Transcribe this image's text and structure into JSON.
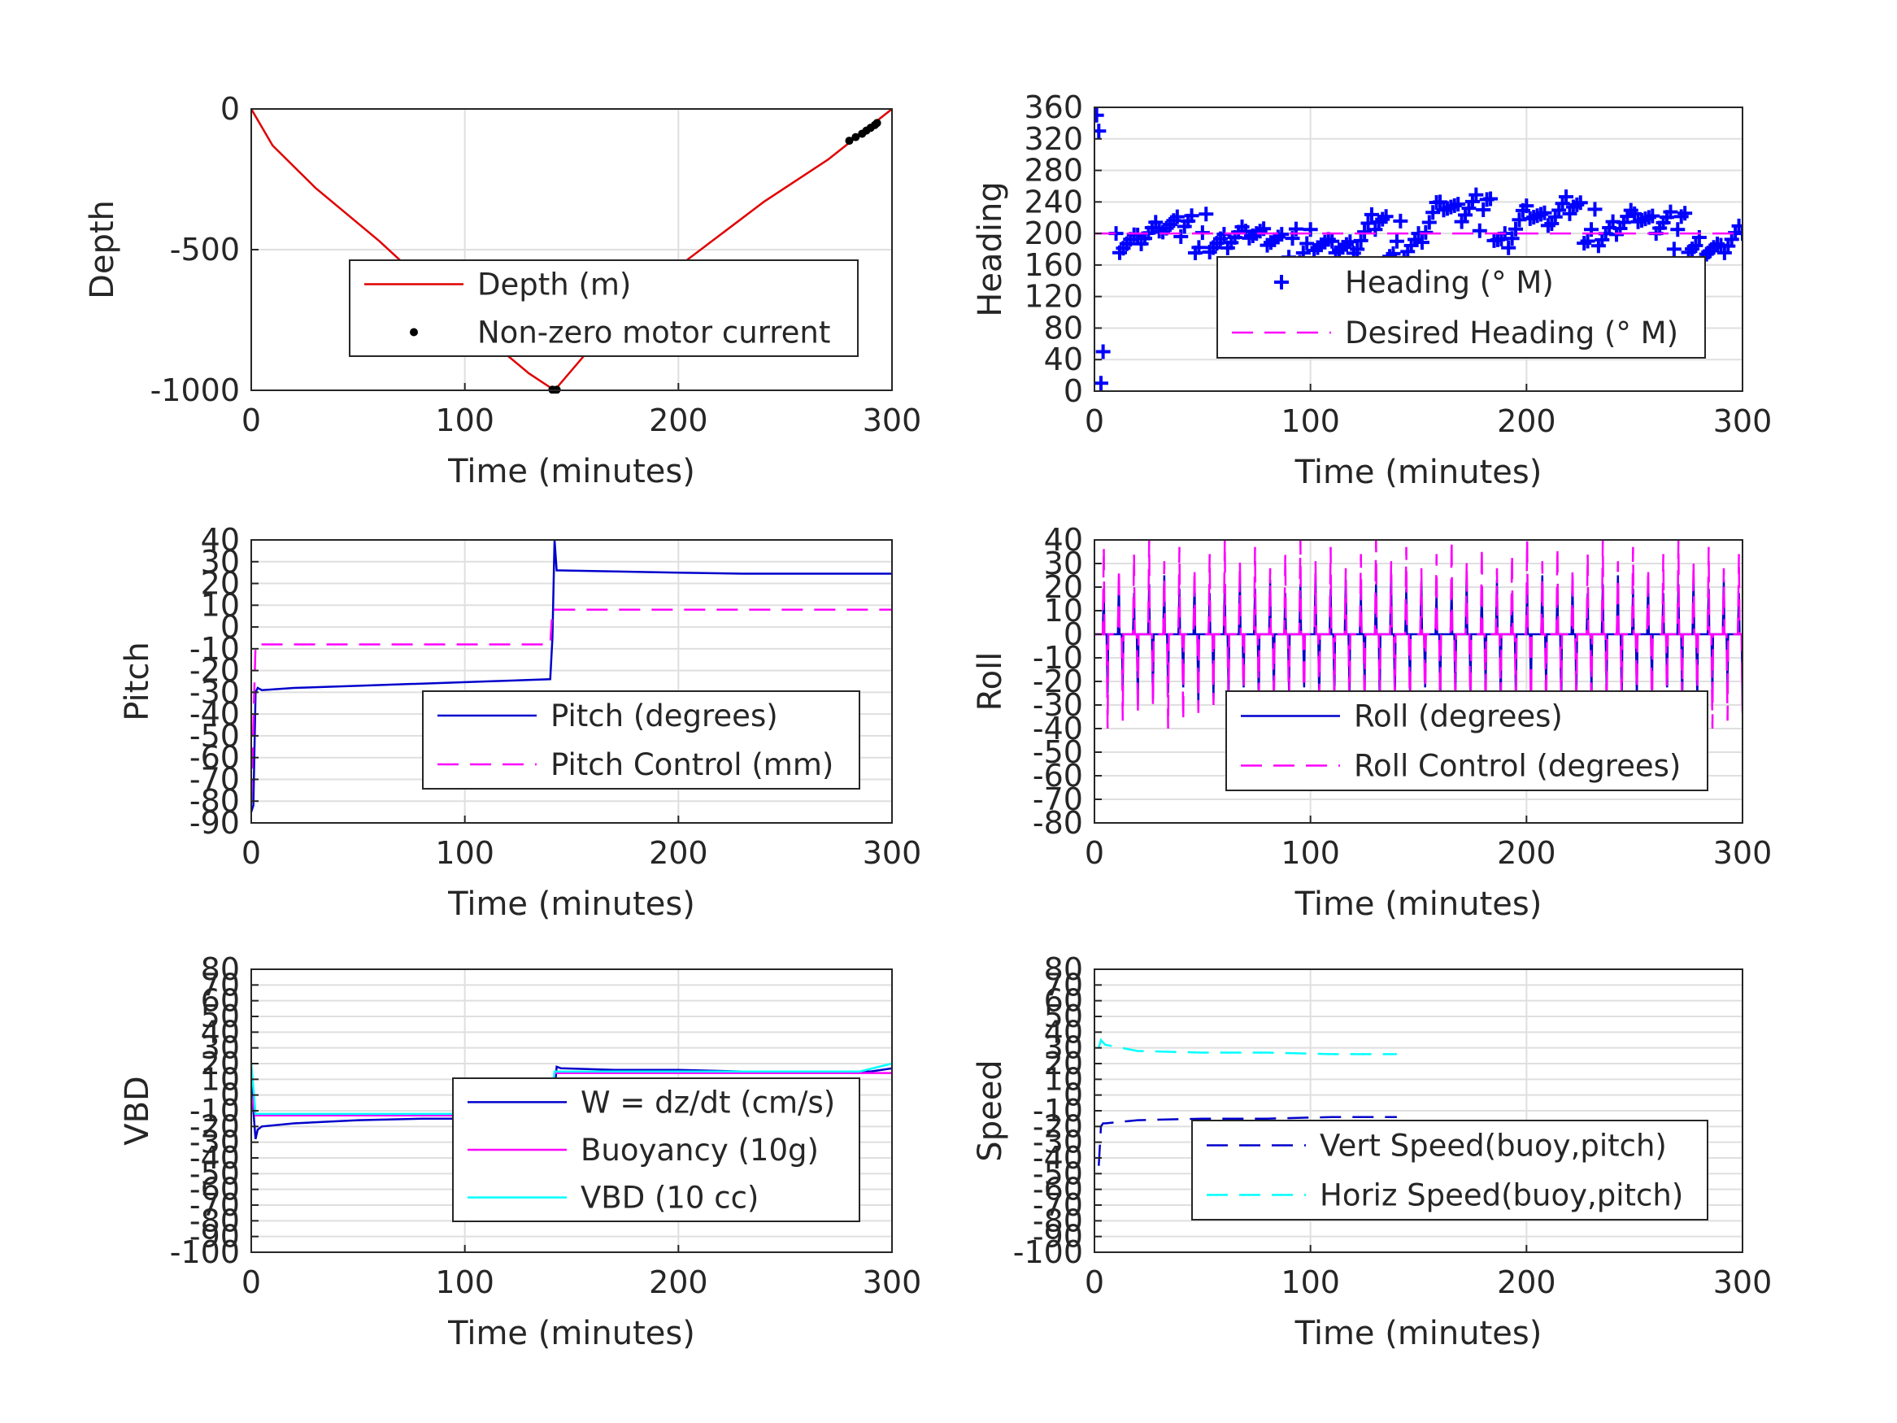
{
  "chart_data": [
    {
      "type": "line",
      "xlabel": "Time (minutes)",
      "ylabel": "Depth",
      "xlim": [
        0,
        300
      ],
      "ylim": [
        -1000,
        0
      ],
      "xticks": [
        0,
        100,
        200,
        300
      ],
      "yticks": [
        0,
        -500,
        -1000
      ],
      "grid": true,
      "legend_position": "bottom-right",
      "series": [
        {
          "name": "Depth (m)",
          "color": "#e00000",
          "style": "solid",
          "x": [
            0,
            10,
            30,
            60,
            100,
            130,
            142,
            160,
            200,
            240,
            270,
            300
          ],
          "y": [
            0,
            -130,
            -280,
            -470,
            -750,
            -940,
            -1000,
            -840,
            -560,
            -330,
            -180,
            0
          ]
        },
        {
          "name": "Non-zero motor current",
          "color": "#000000",
          "style": "markers",
          "x": [
            141,
            142,
            143,
            280,
            283,
            286,
            288,
            290,
            292,
            293
          ],
          "y": [
            -998,
            -1000,
            -998,
            -113,
            -100,
            -88,
            -77,
            -67,
            -57,
            -50
          ]
        }
      ]
    },
    {
      "type": "scatter",
      "xlabel": "Time (minutes)",
      "ylabel": "Heading",
      "xlim": [
        0,
        300
      ],
      "ylim": [
        0,
        360
      ],
      "xticks": [
        0,
        100,
        200,
        300
      ],
      "yticks": [
        0,
        40,
        80,
        120,
        160,
        200,
        240,
        280,
        320,
        360
      ],
      "grid": true,
      "legend_position": "bottom-right",
      "series": [
        {
          "name": "Heading (° M)",
          "color": "#0000ff",
          "style": "plus-markers",
          "x": [
            1,
            2,
            3,
            4,
            10,
            20,
            30,
            40,
            50,
            60,
            70,
            80,
            90,
            100,
            110,
            120,
            130,
            140,
            150,
            160,
            170,
            180,
            190,
            200,
            210,
            220,
            230,
            240,
            250,
            260,
            270,
            280,
            290,
            300
          ],
          "y": [
            350,
            330,
            10,
            50,
            200,
            198,
            203,
            196,
            201,
            199,
            203,
            185,
            170,
            205,
            190,
            175,
            205,
            190,
            200,
            240,
            215,
            230,
            200,
            235,
            210,
            225,
            205,
            215,
            225,
            200,
            205,
            195,
            185,
            200
          ]
        },
        {
          "name": "Desired Heading (° M)",
          "color": "#ff00ff",
          "style": "dashed",
          "x": [
            0,
            300
          ],
          "y": [
            200,
            200
          ]
        }
      ]
    },
    {
      "type": "line",
      "xlabel": "Time (minutes)",
      "ylabel": "Pitch",
      "xlim": [
        0,
        300
      ],
      "ylim": [
        -90,
        40
      ],
      "xticks": [
        0,
        100,
        200,
        300
      ],
      "yticks": [
        40,
        30,
        20,
        10,
        0,
        -10,
        -20,
        -30,
        -40,
        -50,
        -60,
        -70,
        -80,
        -90
      ],
      "grid": true,
      "legend_position": "bottom-right",
      "series": [
        {
          "name": "Pitch (degrees)",
          "color": "#0000cc",
          "style": "solid",
          "x": [
            0,
            1,
            2,
            3,
            5,
            20,
            50,
            80,
            110,
            140,
            141,
            142,
            143,
            145,
            170,
            200,
            230,
            260,
            300
          ],
          "y": [
            -85,
            -82,
            -30,
            -28,
            -29,
            -28,
            -27,
            -26,
            -25,
            -24,
            -5,
            40,
            26,
            26,
            25.5,
            25,
            24.5,
            24.5,
            24.5
          ]
        },
        {
          "name": "Pitch Control (mm)",
          "color": "#ff00ff",
          "style": "dashed",
          "x": [
            0,
            2,
            3,
            140,
            141,
            142,
            300
          ],
          "y": [
            -80,
            -8,
            -8,
            -8,
            8,
            8,
            8
          ]
        }
      ]
    },
    {
      "type": "line",
      "xlabel": "Time (minutes)",
      "ylabel": "Roll",
      "xlim": [
        0,
        300
      ],
      "ylim": [
        -80,
        40
      ],
      "xticks": [
        0,
        100,
        200,
        300
      ],
      "yticks": [
        40,
        30,
        20,
        10,
        0,
        -10,
        -20,
        -30,
        -40,
        -50,
        -60,
        -70,
        -80
      ],
      "grid": true,
      "legend_position": "bottom-right",
      "series": [
        {
          "name": "Roll (degrees)",
          "color": "#0000cc",
          "style": "solid",
          "oscillation_period_minutes": 7,
          "baseline": 0,
          "y_max": 25,
          "y_min": -30
        },
        {
          "name": "Roll Control (degrees)",
          "color": "#ff00ff",
          "style": "dashed",
          "oscillation_period_minutes": 7,
          "baseline": 0,
          "y_max": 40,
          "y_min": -40
        }
      ]
    },
    {
      "type": "line",
      "xlabel": "Time (minutes)",
      "ylabel": "VBD",
      "xlim": [
        0,
        300
      ],
      "ylim": [
        -100,
        80
      ],
      "xticks": [
        0,
        100,
        200,
        300
      ],
      "yticks": [
        80,
        70,
        60,
        50,
        40,
        30,
        20,
        10,
        0,
        -10,
        -20,
        -30,
        -40,
        -50,
        -60,
        -70,
        -80,
        -90,
        -100
      ],
      "grid": true,
      "legend_position": "bottom-right",
      "series": [
        {
          "name": "W = dz/dt (cm/s)",
          "color": "#0000cc",
          "style": "solid",
          "x": [
            0,
            1,
            2,
            3,
            5,
            20,
            50,
            80,
            110,
            140,
            142,
            143,
            145,
            170,
            200,
            230,
            260,
            290,
            300
          ],
          "y": [
            20,
            -10,
            -28,
            -22,
            -20,
            -18,
            -16,
            -15,
            -15,
            -14,
            2,
            18,
            17,
            16,
            16,
            15,
            15,
            15,
            17
          ]
        },
        {
          "name": "Buoyancy (10g)",
          "color": "#ff00ff",
          "style": "solid",
          "x": [
            0,
            2,
            3,
            140,
            142,
            143,
            300
          ],
          "y": [
            0,
            -13,
            -13,
            -13,
            14,
            14,
            14
          ]
        },
        {
          "name": "VBD (10 cc)",
          "color": "#00ffff",
          "style": "solid",
          "x": [
            0,
            2,
            3,
            140,
            142,
            143,
            285,
            300
          ],
          "y": [
            20,
            -12,
            -12,
            -12,
            15,
            15,
            15,
            20
          ]
        }
      ]
    },
    {
      "type": "line",
      "xlabel": "Time (minutes)",
      "ylabel": "Speed",
      "xlim": [
        0,
        300
      ],
      "ylim": [
        -100,
        80
      ],
      "xticks": [
        0,
        100,
        200,
        300
      ],
      "yticks": [
        80,
        70,
        60,
        50,
        40,
        30,
        20,
        10,
        0,
        -10,
        -20,
        -30,
        -40,
        -50,
        -60,
        -70,
        -80,
        -90,
        -100
      ],
      "grid": true,
      "legend_position": "bottom-right",
      "series": [
        {
          "name": "Vert Speed(buoy,pitch)",
          "color": "#0000cc",
          "style": "dashed",
          "x": [
            2,
            3,
            4,
            5,
            20,
            50,
            80,
            110,
            140
          ],
          "y": [
            -45,
            -20,
            -18,
            -18,
            -16,
            -15,
            -15,
            -14,
            -14
          ]
        },
        {
          "name": "Horiz Speed(buoy,pitch)",
          "color": "#00ffff",
          "style": "dashed",
          "x": [
            2,
            3,
            5,
            20,
            50,
            80,
            110,
            140
          ],
          "y": [
            30,
            35,
            32,
            28,
            27,
            27,
            26,
            26
          ]
        }
      ]
    }
  ]
}
